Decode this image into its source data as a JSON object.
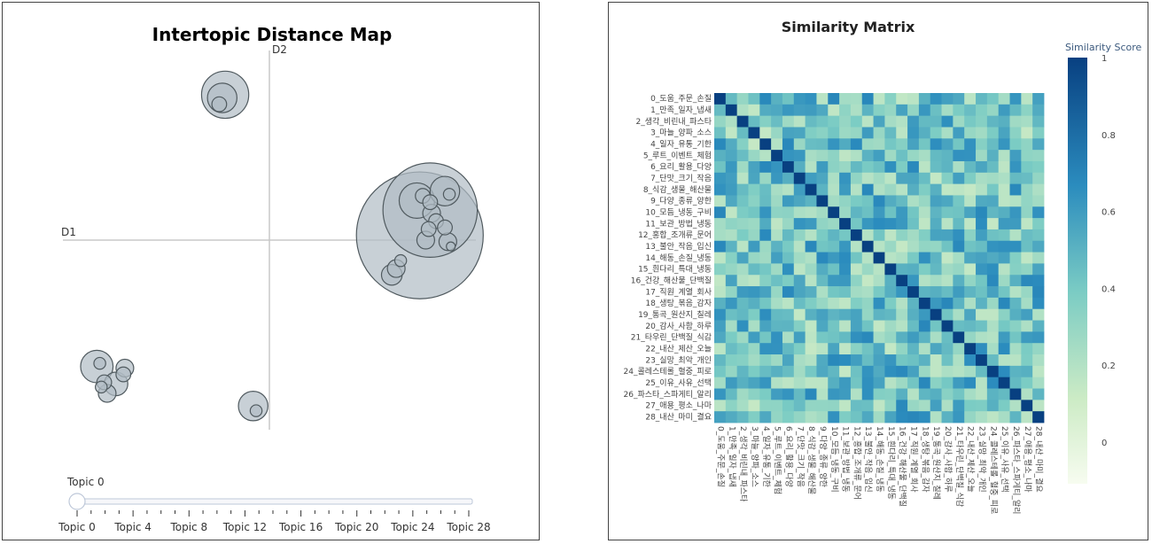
{
  "chart_data": [
    {
      "type": "scatter",
      "title": "Intertopic Distance Map",
      "xlabel": "D1",
      "ylabel": "D2",
      "points": [
        {
          "x": 11.0,
          "y": 9.2,
          "r": 1.6
        },
        {
          "x": 10.8,
          "y": 9.0,
          "r": 1.0
        },
        {
          "x": 10.6,
          "y": 8.6,
          "r": 0.5
        },
        {
          "x": 24.2,
          "y": 0.3,
          "r": 4.3
        },
        {
          "x": 24.9,
          "y": 1.9,
          "r": 3.2
        },
        {
          "x": 24.0,
          "y": 2.5,
          "r": 1.2
        },
        {
          "x": 24.4,
          "y": 2.8,
          "r": 0.5
        },
        {
          "x": 24.9,
          "y": 2.4,
          "r": 0.5
        },
        {
          "x": 25.0,
          "y": 1.7,
          "r": 0.6
        },
        {
          "x": 25.3,
          "y": 1.2,
          "r": 0.5
        },
        {
          "x": 24.8,
          "y": 0.7,
          "r": 0.5
        },
        {
          "x": 25.9,
          "y": 3.1,
          "r": 1.0
        },
        {
          "x": 26.2,
          "y": 2.9,
          "r": 0.4
        },
        {
          "x": 25.9,
          "y": 0.8,
          "r": 0.5
        },
        {
          "x": 24.6,
          "y": 0.0,
          "r": 0.6
        },
        {
          "x": 26.1,
          "y": -0.1,
          "r": 0.6
        },
        {
          "x": 26.3,
          "y": -0.4,
          "r": 0.3
        },
        {
          "x": 22.9,
          "y": -1.3,
          "r": 0.4
        },
        {
          "x": 22.6,
          "y": -1.8,
          "r": 0.6
        },
        {
          "x": 22.3,
          "y": -2.2,
          "r": 0.7
        },
        {
          "x": 2.3,
          "y": -8.0,
          "r": 1.1
        },
        {
          "x": 2.5,
          "y": -7.8,
          "r": 0.4
        },
        {
          "x": 4.2,
          "y": -8.1,
          "r": 0.6
        },
        {
          "x": 4.1,
          "y": -8.5,
          "r": 0.5
        },
        {
          "x": 3.6,
          "y": -9.1,
          "r": 0.8
        },
        {
          "x": 2.8,
          "y": -9.0,
          "r": 0.5
        },
        {
          "x": 2.6,
          "y": -9.3,
          "r": 0.4
        },
        {
          "x": 3.0,
          "y": -9.7,
          "r": 0.6
        },
        {
          "x": 12.9,
          "y": -10.5,
          "r": 1.0
        },
        {
          "x": 13.1,
          "y": -10.8,
          "r": 0.4
        }
      ],
      "slider": {
        "current_label": "Topic 0",
        "ticks": [
          "Topic 0",
          "Topic 4",
          "Topic 8",
          "Topic 12",
          "Topic 16",
          "Topic 20",
          "Topic 24",
          "Topic 28"
        ]
      },
      "colors": {
        "bubble_fill": "#b0bcc4",
        "bubble_stroke": "#505a5f"
      }
    },
    {
      "type": "heatmap",
      "title": "Similarity Matrix",
      "colorbar_title": "Similarity Score",
      "colorbar_ticks": [
        "1",
        "0.8",
        "0.6",
        "0.4",
        "0.2",
        "0"
      ],
      "colorscale": [
        "#f7fcf0",
        "#ccebc5",
        "#7bccc4",
        "#2b8cbe",
        "#084081"
      ],
      "labels": [
        "0_도움_주문_손질",
        "1_만족_일자_냅새",
        "2_생각_비린내_파스타",
        "3_마늘_양파_소스",
        "4_일자_유통_기한",
        "5_루트_이벤트_체험",
        "6_요리_활용_다양",
        "7_단맛_크기_작음",
        "8_식감_생물_해산물",
        "9_다양_종류_양한",
        "10_모듬_냉동_구비",
        "11_보관_방법_냉동",
        "12_홍합_조개류_문어",
        "13_불안_작음_입신",
        "14_해동_손질_냉동",
        "15_흰다리_특대_냉동",
        "16_건강_해산물_단백질",
        "17_직원_계열_회사",
        "18_생탕_볶음_감자",
        "19_통곡_원산지_칠레",
        "20_감사_사함_하루",
        "21_타우린_단백질_식감",
        "22_내산_제산_오늘",
        "23_실망_최악_개인",
        "24_콜레스테롤_혈중_피로",
        "25_이유_사유_선택",
        "26_파스타_스파게티_알리",
        "27_애용_평소_나마",
        "28_내산_마미_결요"
      ]
    }
  ]
}
